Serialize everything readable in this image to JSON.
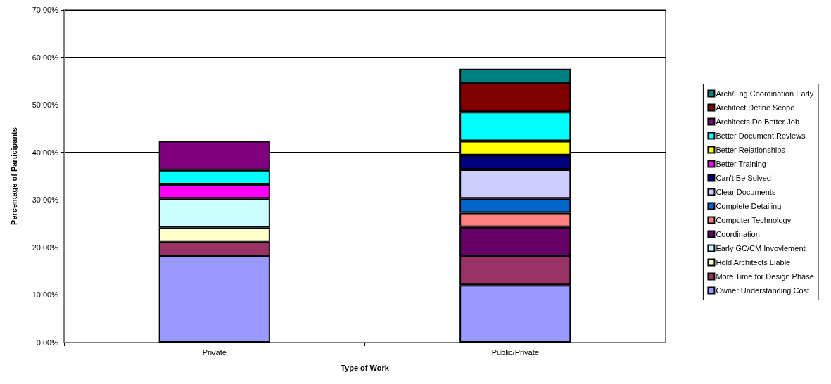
{
  "chart_data": {
    "type": "bar",
    "stacked": true,
    "xlabel": "Type of Work",
    "ylabel": "Percentage of Participants",
    "categories": [
      "Private",
      "Public/Private"
    ],
    "series": [
      {
        "name": "Owner Understanding Cost",
        "color": "#9999ff",
        "values": [
          18.2,
          12.1
        ]
      },
      {
        "name": "More Time for Design Phase",
        "color": "#993366",
        "values": [
          3,
          6.1
        ]
      },
      {
        "name": "Hold Architects Liable",
        "color": "#ffffcc",
        "values": [
          3,
          null
        ]
      },
      {
        "name": "Early GC/CM Invovlement",
        "color": "#ccffff",
        "values": [
          6.1,
          null
        ]
      },
      {
        "name": "Coordination",
        "color": "#660066",
        "values": [
          null,
          6.1
        ]
      },
      {
        "name": "Computer Technology",
        "color": "#ff8080",
        "values": [
          null,
          3
        ]
      },
      {
        "name": "Complete Detailing",
        "color": "#0066cc",
        "values": [
          null,
          3
        ]
      },
      {
        "name": "Clear Documents",
        "color": "#ccccff",
        "values": [
          null,
          6.1
        ]
      },
      {
        "name": "Can't Be Solved",
        "color": "#000080",
        "values": [
          null,
          3
        ]
      },
      {
        "name": "Better Training",
        "color": "#ff00ff",
        "values": [
          3,
          null
        ]
      },
      {
        "name": "Better Relationships",
        "color": "#ffff00",
        "values": [
          null,
          3
        ]
      },
      {
        "name": "Better Document Reviews",
        "color": "#00ffff",
        "values": [
          3,
          6.1
        ]
      },
      {
        "name": "Architects Do Better Job",
        "color": "#800080",
        "values": [
          6.1,
          null
        ]
      },
      {
        "name": "Architect Define Scope",
        "color": "#800000",
        "values": [
          null,
          6.1
        ]
      },
      {
        "name": "Arch/Eng Coordination Early",
        "color": "#008080",
        "values": [
          null,
          3
        ]
      }
    ],
    "ylim": [
      0,
      70
    ],
    "yticks": [
      {
        "value": 0,
        "label": "0.00%"
      },
      {
        "value": 10,
        "label": "10.00%"
      },
      {
        "value": 20,
        "label": "20.00%"
      },
      {
        "value": 30,
        "label": "30.00%"
      },
      {
        "value": 40,
        "label": "40.00%"
      },
      {
        "value": 50,
        "label": "50.00%"
      },
      {
        "value": 60,
        "label": "60.00%"
      },
      {
        "value": 70,
        "label": "70.00%"
      }
    ],
    "grid": "y",
    "legend": "right"
  }
}
